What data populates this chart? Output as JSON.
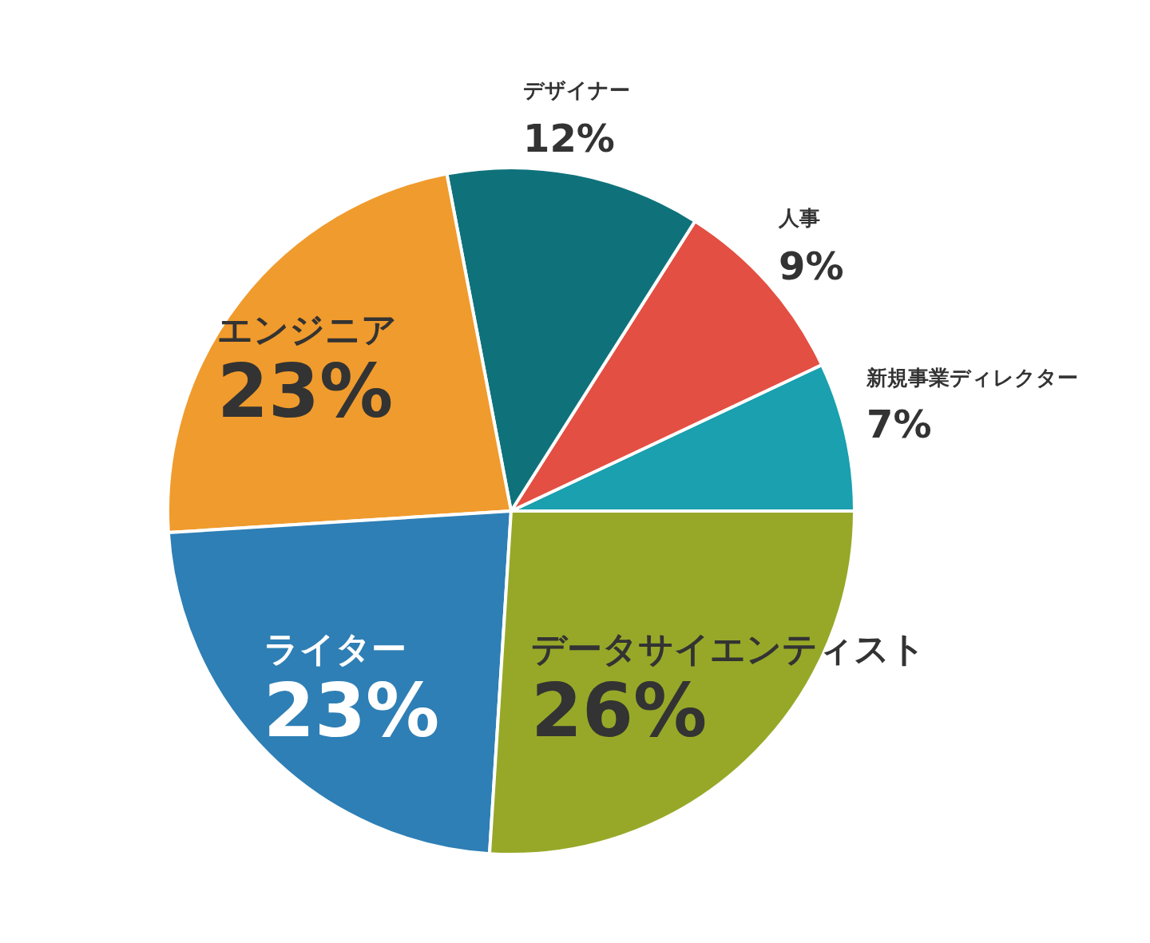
{
  "chart_data": {
    "type": "pie",
    "categories": [
      "新規事業ディレクター",
      "人事",
      "デザイナー",
      "エンジニア",
      "ライター",
      "データサイエンティスト"
    ],
    "values": [
      7,
      9,
      12,
      23,
      23,
      26
    ],
    "colors": [
      "#1aa0ae",
      "#e34f42",
      "#0f727b",
      "#f09b2d",
      "#2e7fb5",
      "#97a828"
    ],
    "value_labels": [
      "7%",
      "9%",
      "12%",
      "23%",
      "23%",
      "26%"
    ]
  }
}
